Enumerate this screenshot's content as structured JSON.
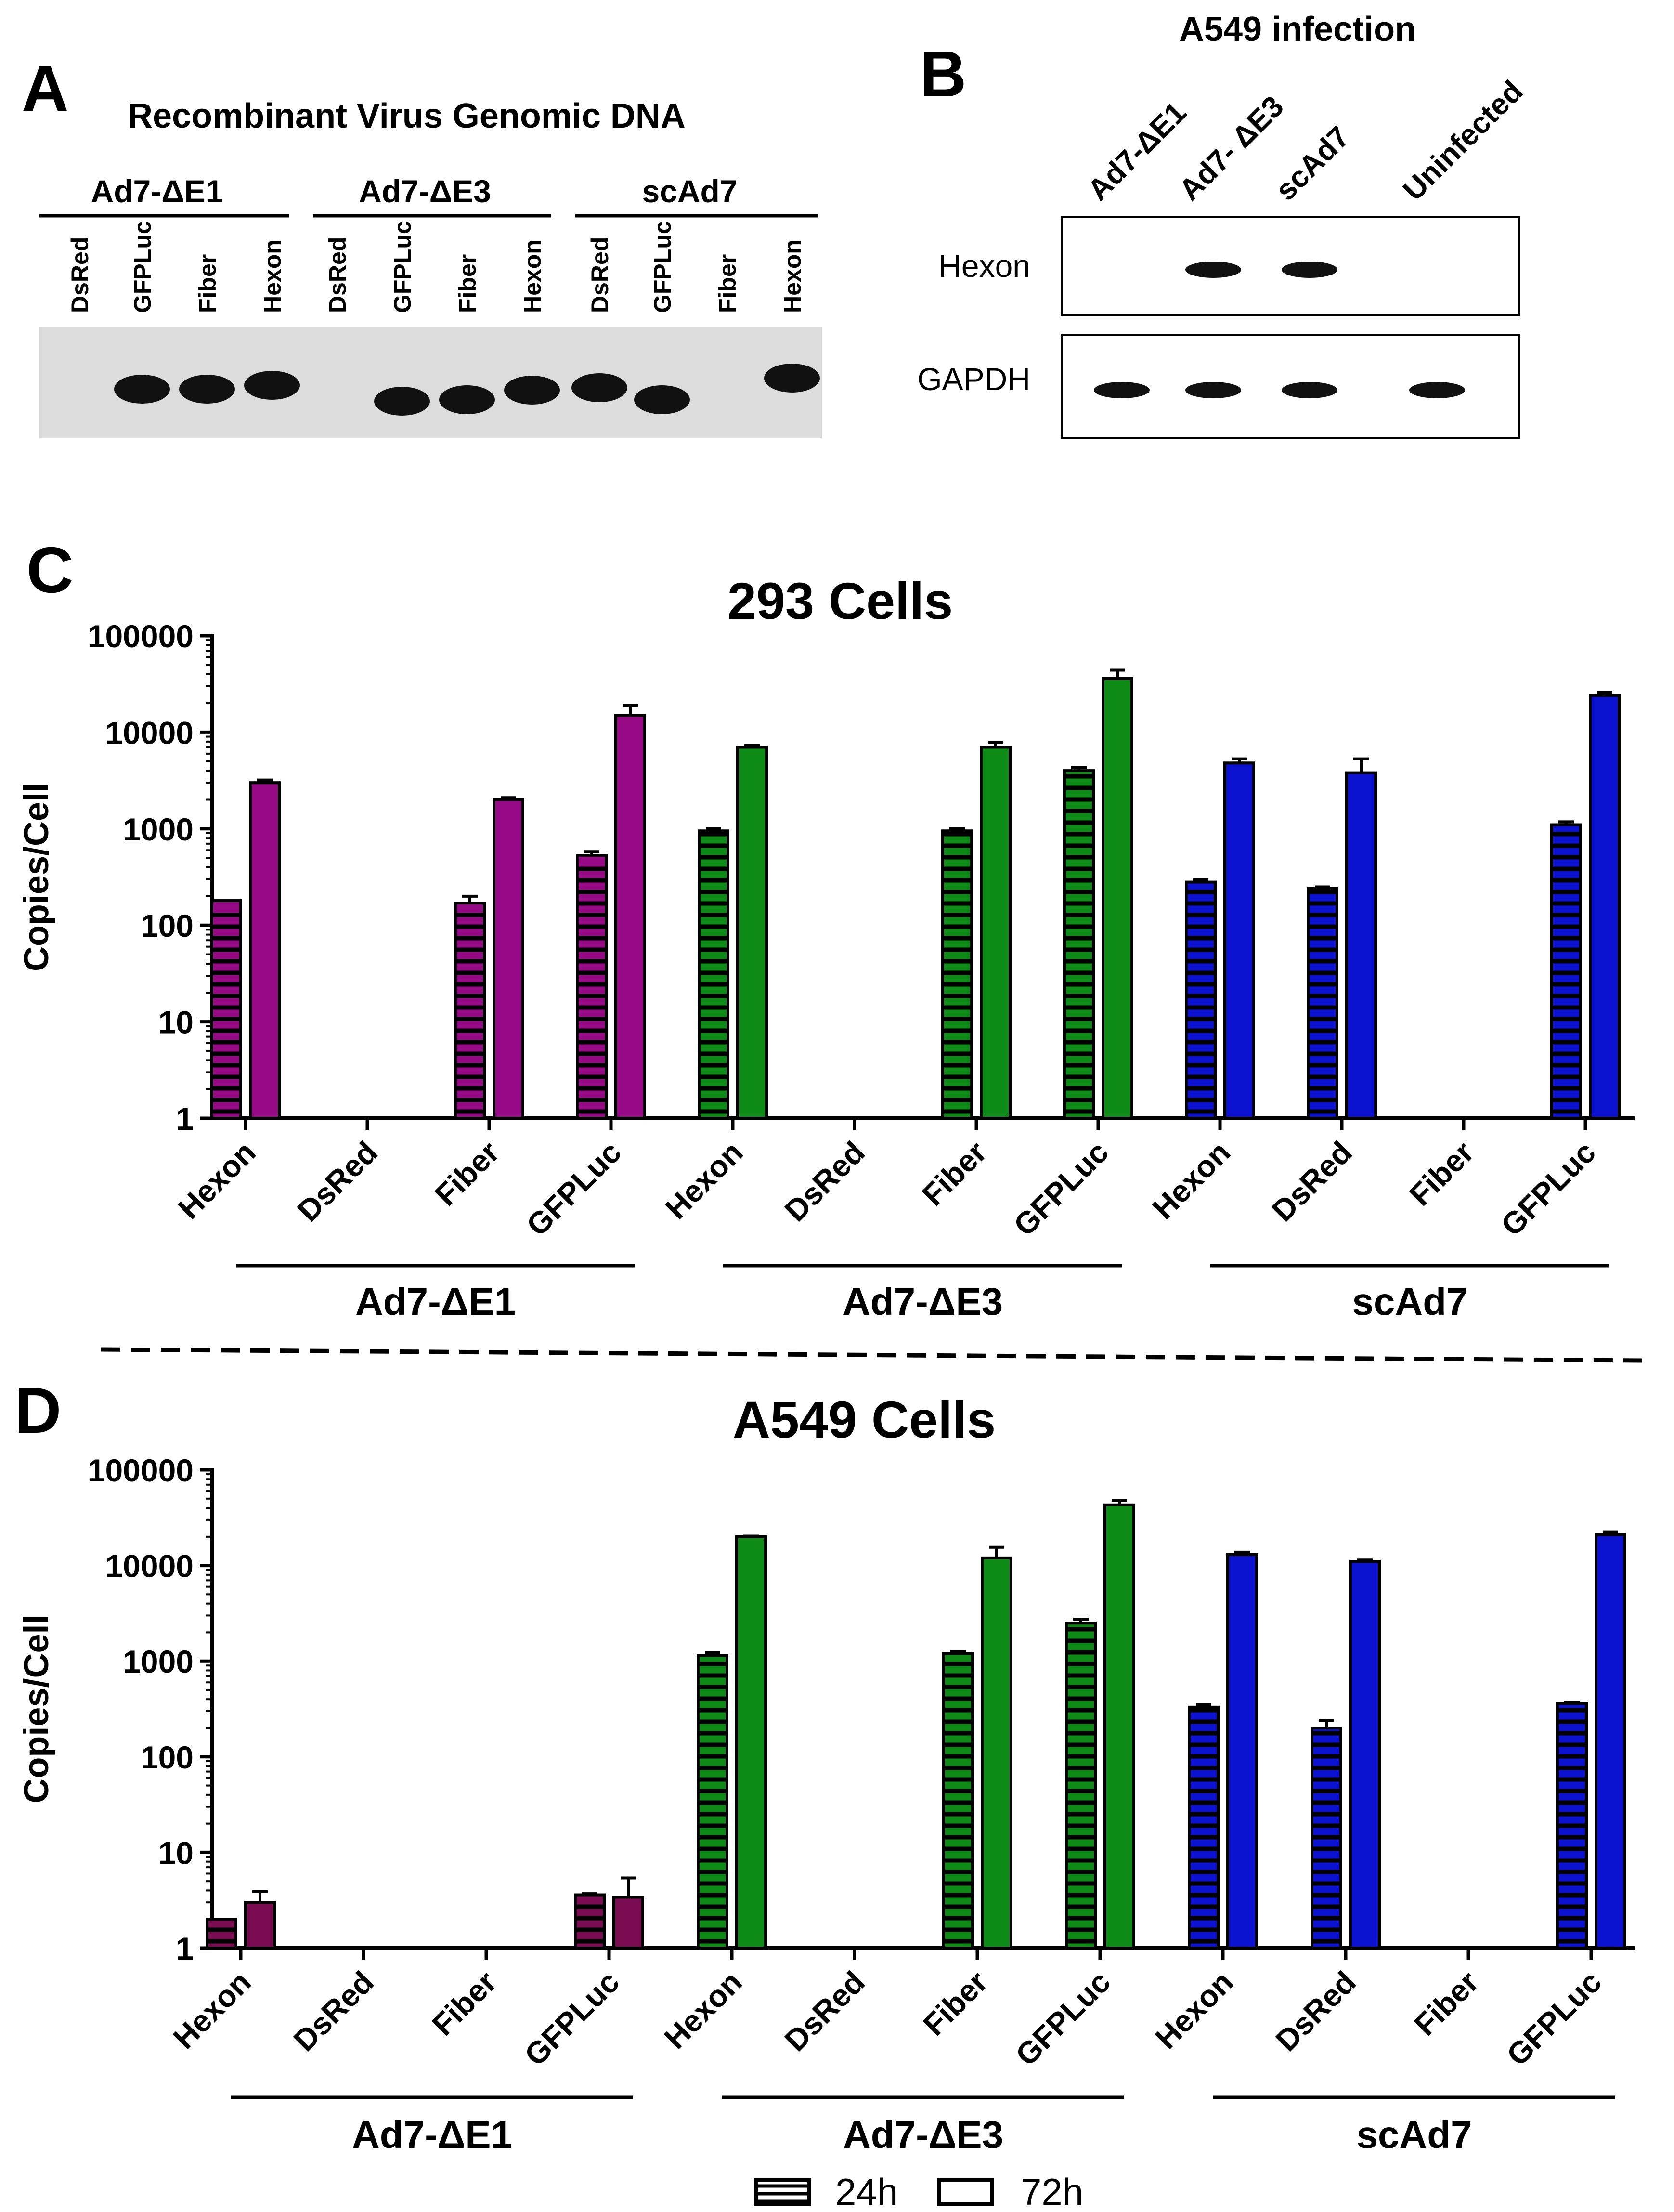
{
  "panel_a": {
    "letter": "A",
    "title": "Recombinant Virus Genomic DNA",
    "groups": [
      "Ad7-ΔE1",
      "Ad7-ΔE3",
      "scAd7"
    ],
    "lanes": [
      "DsRed",
      "GFPLuc",
      "Fiber",
      "Hexon",
      "DsRed",
      "GFPLuc",
      "Fiber",
      "Hexon",
      "DsRed",
      "GFPLuc",
      "Fiber",
      "Hexon"
    ],
    "bands_present": [
      false,
      true,
      true,
      true,
      false,
      true,
      true,
      true,
      true,
      true,
      false,
      true
    ]
  },
  "panel_b": {
    "letter": "B",
    "title": "A549 infection",
    "lanes": [
      "Ad7-ΔE1",
      "Ad7- ΔE3",
      "scAd7",
      "Uninfected"
    ],
    "blots": [
      {
        "label": "Hexon",
        "bands_present": [
          false,
          true,
          true,
          false
        ]
      },
      {
        "label": "GAPDH",
        "bands_present": [
          true,
          true,
          true,
          true
        ]
      }
    ]
  },
  "colors": {
    "purple": "#960a86",
    "green": "#0e8a16",
    "blue": "#0b12d0",
    "maroon": "#7a0d52"
  },
  "legend": {
    "items": [
      {
        "label": "24h",
        "pattern": "striped"
      },
      {
        "label": "72h",
        "pattern": "open"
      }
    ]
  },
  "chart_data": [
    {
      "panel_letter": "C",
      "type": "bar",
      "title": "293 Cells",
      "ylabel": "Copies/Cell",
      "yscale": "log",
      "ylim": [
        1,
        100000
      ],
      "yticks": [
        "1",
        "10",
        "100",
        "1000",
        "10000",
        "100000"
      ],
      "categories": [
        "Hexon",
        "DsRed",
        "Fiber",
        "GFPLuc"
      ],
      "groups": [
        {
          "name": "Ad7-ΔE1",
          "color": "#960a86",
          "series": [
            {
              "name": "24h",
              "values": [
                180,
                null,
                170,
                530
              ],
              "errors": [
                0,
                null,
                30,
                50
              ]
            },
            {
              "name": "72h",
              "values": [
                3000,
                null,
                2000,
                15000
              ],
              "errors": [
                200,
                null,
                100,
                4000
              ]
            }
          ]
        },
        {
          "name": "Ad7-ΔE3",
          "color": "#0e8a16",
          "series": [
            {
              "name": "24h",
              "values": [
                950,
                null,
                950,
                4000
              ],
              "errors": [
                50,
                null,
                50,
                300
              ]
            },
            {
              "name": "72h",
              "values": [
                7000,
                null,
                7000,
                36000
              ],
              "errors": [
                300,
                null,
                800,
                8000
              ]
            }
          ]
        },
        {
          "name": "scAd7",
          "color": "#0b12d0",
          "series": [
            {
              "name": "24h",
              "values": [
                280,
                240,
                null,
                1100
              ],
              "errors": [
                15,
                10,
                null,
                80
              ]
            },
            {
              "name": "72h",
              "values": [
                4800,
                3800,
                null,
                24000
              ],
              "errors": [
                500,
                1500,
                null,
                2000
              ]
            }
          ]
        }
      ]
    },
    {
      "panel_letter": "D",
      "type": "bar",
      "title": "A549 Cells",
      "ylabel": "Copies/Cell",
      "yscale": "log",
      "ylim": [
        1,
        100000
      ],
      "yticks": [
        "1",
        "10",
        "100",
        "1000",
        "10000",
        "100000"
      ],
      "categories": [
        "Hexon",
        "DsRed",
        "Fiber",
        "GFPLuc"
      ],
      "groups": [
        {
          "name": "Ad7-ΔE1",
          "color": "#7a0d52",
          "series": [
            {
              "name": "24h",
              "values": [
                2,
                null,
                null,
                3.6
              ],
              "errors": [
                0,
                null,
                null,
                0.1
              ]
            },
            {
              "name": "72h",
              "values": [
                3,
                null,
                null,
                3.4
              ],
              "errors": [
                0.9,
                null,
                null,
                2
              ]
            }
          ]
        },
        {
          "name": "Ad7-ΔE3",
          "color": "#0e8a16",
          "series": [
            {
              "name": "24h",
              "values": [
                1150,
                null,
                1200,
                2500
              ],
              "errors": [
                80,
                null,
                60,
                250
              ]
            },
            {
              "name": "72h",
              "values": [
                20000,
                null,
                12000,
                43000
              ],
              "errors": [
                300,
                null,
                3500,
                5000
              ]
            }
          ]
        },
        {
          "name": "scAd7",
          "color": "#0b12d0",
          "series": [
            {
              "name": "24h",
              "values": [
                330,
                200,
                null,
                360
              ],
              "errors": [
                20,
                40,
                null,
                10
              ]
            },
            {
              "name": "72h",
              "values": [
                13000,
                11000,
                null,
                21000
              ],
              "errors": [
                800,
                400,
                null,
                1500
              ]
            }
          ]
        }
      ]
    }
  ]
}
